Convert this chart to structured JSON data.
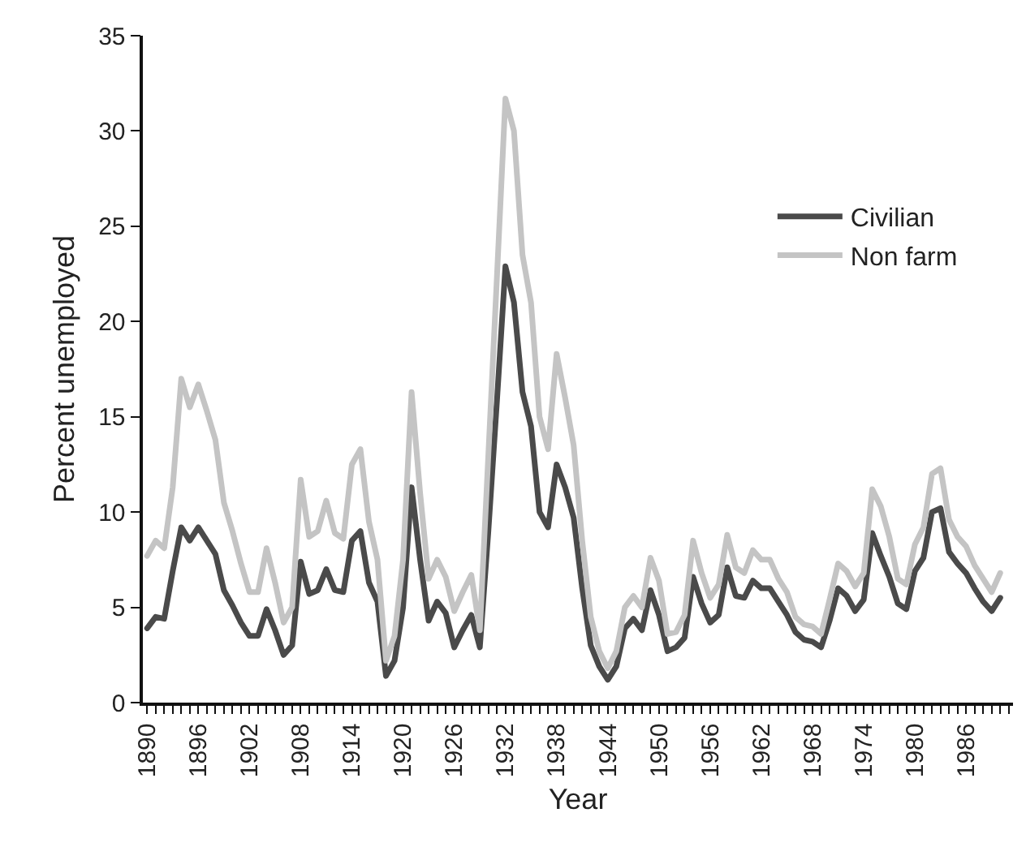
{
  "chart_data": {
    "type": "line",
    "xlabel": "Year",
    "ylabel": "Percent unemployed",
    "x": [
      1890,
      1891,
      1892,
      1893,
      1894,
      1895,
      1896,
      1897,
      1898,
      1899,
      1900,
      1901,
      1902,
      1903,
      1904,
      1905,
      1906,
      1907,
      1908,
      1909,
      1910,
      1911,
      1912,
      1913,
      1914,
      1915,
      1916,
      1917,
      1918,
      1919,
      1920,
      1921,
      1922,
      1923,
      1924,
      1925,
      1926,
      1927,
      1928,
      1929,
      1930,
      1931,
      1932,
      1933,
      1934,
      1935,
      1936,
      1937,
      1938,
      1939,
      1940,
      1941,
      1942,
      1943,
      1944,
      1945,
      1946,
      1947,
      1948,
      1949,
      1950,
      1951,
      1952,
      1953,
      1954,
      1955,
      1956,
      1957,
      1958,
      1959,
      1960,
      1961,
      1962,
      1963,
      1964,
      1965,
      1966,
      1967,
      1968,
      1969,
      1970,
      1971,
      1972,
      1973,
      1974,
      1975,
      1976,
      1977,
      1978,
      1979,
      1980,
      1981,
      1982,
      1983,
      1984,
      1985,
      1986,
      1987,
      1988,
      1989,
      1990
    ],
    "series": [
      {
        "name": "Civilian",
        "color": "#4a4a4a",
        "values": [
          3.9,
          4.5,
          4.4,
          6.9,
          9.2,
          8.5,
          9.2,
          8.5,
          7.8,
          5.9,
          5.1,
          4.2,
          3.5,
          3.5,
          4.9,
          3.8,
          2.5,
          3.0,
          7.4,
          5.7,
          5.9,
          7.0,
          5.9,
          5.8,
          8.5,
          9.0,
          6.3,
          5.3,
          1.4,
          2.2,
          5.0,
          11.3,
          7.5,
          4.3,
          5.3,
          4.7,
          2.9,
          3.8,
          4.6,
          2.9,
          9.0,
          15.8,
          22.9,
          21.0,
          16.3,
          14.5,
          10.0,
          9.2,
          12.5,
          11.3,
          9.7,
          6.0,
          3.0,
          1.9,
          1.2,
          1.9,
          3.9,
          4.4,
          3.8,
          5.9,
          4.6,
          2.7,
          2.9,
          3.4,
          6.6,
          5.2,
          4.2,
          4.6,
          7.1,
          5.6,
          5.5,
          6.4,
          6.0,
          6.0,
          5.3,
          4.6,
          3.7,
          3.3,
          3.2,
          2.9,
          4.3,
          6.0,
          5.6,
          4.8,
          5.4,
          8.9,
          7.7,
          6.6,
          5.2,
          4.9,
          6.9,
          7.6,
          10.0,
          10.2,
          7.9,
          7.3,
          6.8,
          6.0,
          5.3,
          4.8,
          5.5
        ]
      },
      {
        "name": "Non farm",
        "color": "#c4c4c4",
        "values": [
          7.7,
          8.5,
          8.1,
          11.3,
          17.0,
          15.5,
          16.7,
          15.3,
          13.8,
          10.5,
          9.0,
          7.3,
          5.8,
          5.8,
          8.1,
          6.3,
          4.2,
          5.0,
          11.7,
          8.7,
          9.0,
          10.6,
          8.9,
          8.6,
          12.5,
          13.3,
          9.5,
          7.5,
          2.2,
          3.5,
          7.5,
          16.3,
          11.0,
          6.5,
          7.5,
          6.6,
          4.8,
          5.8,
          6.7,
          3.8,
          13.0,
          22.3,
          31.7,
          30.0,
          23.5,
          21.0,
          15.0,
          13.3,
          18.3,
          16.0,
          13.5,
          8.5,
          4.5,
          2.7,
          1.8,
          2.7,
          5.0,
          5.6,
          5.0,
          7.6,
          6.4,
          3.6,
          3.7,
          4.6,
          8.5,
          6.8,
          5.5,
          6.2,
          8.8,
          7.1,
          6.8,
          8.0,
          7.5,
          7.5,
          6.5,
          5.8,
          4.5,
          4.1,
          4.0,
          3.6,
          5.4,
          7.3,
          6.9,
          6.1,
          6.8,
          11.2,
          10.3,
          8.7,
          6.5,
          6.2,
          8.3,
          9.2,
          12.0,
          12.3,
          9.6,
          8.7,
          8.2,
          7.2,
          6.5,
          5.8,
          6.8
        ]
      }
    ],
    "xlim": [
      1889.5,
      1991.5
    ],
    "xticks": [
      1890,
      {
        "value": 1891,
        "label": null
      },
      {
        "value": 1892,
        "label": null
      },
      {
        "value": 1893,
        "label": null
      },
      {
        "value": 1894,
        "label": null
      },
      {
        "value": 1895,
        "label": null
      },
      1896,
      {
        "value": 1897,
        "label": null
      },
      {
        "value": 1898,
        "label": null
      },
      {
        "value": 1899,
        "label": null
      },
      {
        "value": 1900,
        "label": null
      },
      {
        "value": 1901,
        "label": null
      },
      1902,
      {
        "value": 1903,
        "label": null
      },
      {
        "value": 1904,
        "label": null
      },
      {
        "value": 1905,
        "label": null
      },
      {
        "value": 1906,
        "label": null
      },
      {
        "value": 1907,
        "label": null
      },
      1908,
      {
        "value": 1909,
        "label": null
      },
      {
        "value": 1910,
        "label": null
      },
      {
        "value": 1911,
        "label": null
      },
      {
        "value": 1912,
        "label": null
      },
      {
        "value": 1913,
        "label": null
      },
      1914,
      {
        "value": 1915,
        "label": null
      },
      {
        "value": 1916,
        "label": null
      },
      {
        "value": 1917,
        "label": null
      },
      {
        "value": 1918,
        "label": null
      },
      {
        "value": 1919,
        "label": null
      },
      1920,
      {
        "value": 1921,
        "label": null
      },
      {
        "value": 1922,
        "label": null
      },
      {
        "value": 1923,
        "label": null
      },
      {
        "value": 1924,
        "label": null
      },
      {
        "value": 1925,
        "label": null
      },
      1926,
      {
        "value": 1927,
        "label": null
      },
      {
        "value": 1928,
        "label": null
      },
      {
        "value": 1929,
        "label": null
      },
      {
        "value": 1930,
        "label": null
      },
      {
        "value": 1931,
        "label": null
      },
      1932,
      {
        "value": 1933,
        "label": null
      },
      {
        "value": 1934,
        "label": null
      },
      {
        "value": 1935,
        "label": null
      },
      {
        "value": 1936,
        "label": null
      },
      {
        "value": 1937,
        "label": null
      },
      1938,
      {
        "value": 1939,
        "label": null
      },
      {
        "value": 1940,
        "label": null
      },
      {
        "value": 1941,
        "label": null
      },
      {
        "value": 1942,
        "label": null
      },
      {
        "value": 1943,
        "label": null
      },
      1944,
      {
        "value": 1945,
        "label": null
      },
      {
        "value": 1946,
        "label": null
      },
      {
        "value": 1947,
        "label": null
      },
      {
        "value": 1948,
        "label": null
      },
      {
        "value": 1949,
        "label": null
      },
      1950,
      {
        "value": 1951,
        "label": null
      },
      {
        "value": 1952,
        "label": null
      },
      {
        "value": 1953,
        "label": null
      },
      {
        "value": 1954,
        "label": null
      },
      {
        "value": 1955,
        "label": null
      },
      1956,
      {
        "value": 1957,
        "label": null
      },
      {
        "value": 1958,
        "label": null
      },
      {
        "value": 1959,
        "label": null
      },
      {
        "value": 1960,
        "label": null
      },
      {
        "value": 1961,
        "label": null
      },
      1962,
      {
        "value": 1963,
        "label": null
      },
      {
        "value": 1964,
        "label": null
      },
      {
        "value": 1965,
        "label": null
      },
      {
        "value": 1966,
        "label": null
      },
      {
        "value": 1967,
        "label": null
      },
      1968,
      {
        "value": 1969,
        "label": null
      },
      {
        "value": 1970,
        "label": null
      },
      {
        "value": 1971,
        "label": null
      },
      {
        "value": 1972,
        "label": null
      },
      {
        "value": 1973,
        "label": null
      },
      1974,
      {
        "value": 1975,
        "label": null
      },
      {
        "value": 1976,
        "label": null
      },
      {
        "value": 1977,
        "label": null
      },
      {
        "value": 1978,
        "label": null
      },
      {
        "value": 1979,
        "label": null
      },
      1980,
      {
        "value": 1981,
        "label": null
      },
      {
        "value": 1982,
        "label": null
      },
      {
        "value": 1983,
        "label": null
      },
      {
        "value": 1984,
        "label": null
      },
      {
        "value": 1985,
        "label": null
      },
      1986,
      {
        "value": 1987,
        "label": null
      },
      {
        "value": 1988,
        "label": null
      },
      {
        "value": 1989,
        "label": null
      },
      {
        "value": 1990,
        "label": null
      },
      {
        "value": 1991,
        "label": null
      }
    ],
    "ylim": [
      0,
      35
    ],
    "yticks": [
      0,
      5,
      10,
      15,
      20,
      25,
      30,
      35
    ],
    "legend": "right",
    "marker": "none",
    "line_style": "solid"
  }
}
